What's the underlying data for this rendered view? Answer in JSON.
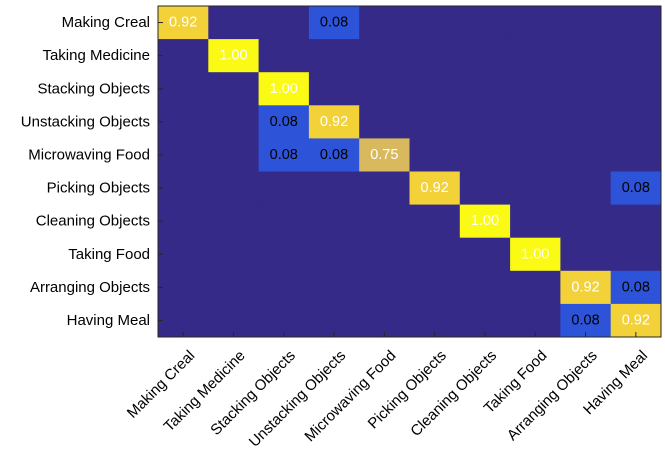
{
  "chart_data": {
    "type": "heatmap",
    "title": "",
    "xlabel": "",
    "ylabel": "",
    "rows": [
      "Making Creal",
      "Taking Medicine",
      "Stacking Objects",
      "Unstacking Objects",
      "Microwaving Food",
      "Picking Objects",
      "Cleaning Objects",
      "Taking Food",
      "Arranging Objects",
      "Having Meal"
    ],
    "columns": [
      "Making Creal",
      "Taking Medicine",
      "Stacking Objects",
      "Unstacking Objects",
      "Microwaving Food",
      "Picking Objects",
      "Cleaning Objects",
      "Taking Food",
      "Arranging Objects",
      "Having Meal"
    ],
    "values": [
      [
        0.92,
        0,
        0,
        0.08,
        0,
        0,
        0,
        0,
        0,
        0
      ],
      [
        0,
        1.0,
        0,
        0,
        0,
        0,
        0,
        0,
        0,
        0
      ],
      [
        0,
        0,
        1.0,
        0,
        0,
        0,
        0,
        0,
        0,
        0
      ],
      [
        0,
        0,
        0.08,
        0.92,
        0,
        0,
        0,
        0,
        0,
        0
      ],
      [
        0,
        0,
        0.08,
        0.08,
        0.75,
        0,
        0,
        0,
        0,
        0
      ],
      [
        0,
        0,
        0,
        0,
        0,
        0.92,
        0,
        0,
        0,
        0.08
      ],
      [
        0,
        0,
        0,
        0,
        0,
        0,
        1.0,
        0,
        0,
        0
      ],
      [
        0,
        0,
        0,
        0,
        0,
        0,
        0,
        1.0,
        0,
        0
      ],
      [
        0,
        0,
        0,
        0,
        0,
        0,
        0,
        0,
        0.92,
        0.08
      ],
      [
        0,
        0,
        0,
        0,
        0,
        0,
        0,
        0,
        0.08,
        0.92
      ]
    ],
    "labels": [
      [
        "0.92",
        "",
        "",
        "0.08",
        "",
        "",
        "",
        "",
        "",
        ""
      ],
      [
        "",
        "1.00",
        "",
        "",
        "",
        "",
        "",
        "",
        "",
        ""
      ],
      [
        "",
        "",
        "1.00",
        "",
        "",
        "",
        "",
        "",
        "",
        ""
      ],
      [
        "",
        "",
        "0.08",
        "0.92",
        "",
        "",
        "",
        "",
        "",
        ""
      ],
      [
        "",
        "",
        "0.08",
        "0.08",
        "0.75",
        "",
        "",
        "",
        "",
        ""
      ],
      [
        "",
        "",
        "",
        "",
        "",
        "0.92",
        "",
        "",
        "",
        "0.08"
      ],
      [
        "",
        "",
        "",
        "",
        "",
        "",
        "1.00",
        "",
        "",
        ""
      ],
      [
        "",
        "",
        "",
        "",
        "",
        "",
        "",
        "1.00",
        "",
        ""
      ],
      [
        "",
        "",
        "",
        "",
        "",
        "",
        "",
        "",
        "0.92",
        "0.08"
      ],
      [
        "",
        "",
        "",
        "",
        "",
        "",
        "",
        "",
        "0.08",
        "0.92"
      ]
    ],
    "colormap": "parula",
    "value_colors": {
      "0": "#352a87",
      "0.08": "#2d54d8",
      "0.75": "#d8b95e",
      "0.92": "#f2d238",
      "1.00": "#fafa14"
    },
    "text_colors": {
      "light": "#ffffff",
      "dark": "#000000"
    },
    "grid": false,
    "legend": "none"
  }
}
